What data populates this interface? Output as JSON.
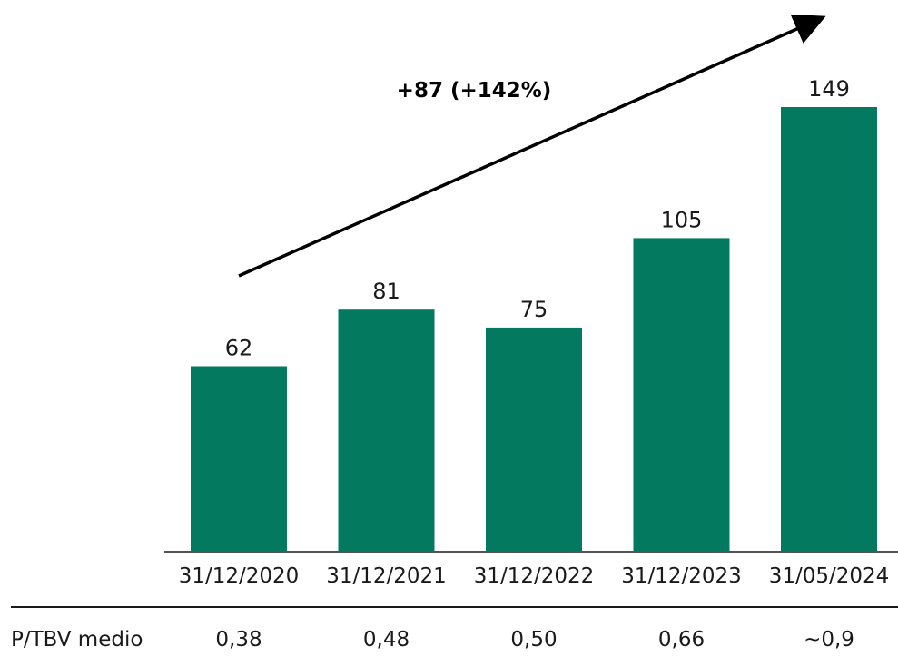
{
  "chart_data": {
    "type": "bar",
    "categories": [
      "31/12/2020",
      "31/12/2021",
      "31/12/2022",
      "31/12/2023",
      "31/05/2024"
    ],
    "values": [
      62,
      81,
      75,
      105,
      149
    ],
    "value_labels": [
      "62",
      "81",
      "75",
      "105",
      "149"
    ],
    "title": "",
    "xlabel": "",
    "ylabel": "",
    "bar_color": "#037a5f",
    "annotation": "+87 (+142%)",
    "grid": false
  },
  "ptbv_row": {
    "label": "P/TBV medio",
    "values": [
      "0,38",
      "0,48",
      "0,50",
      "0,66",
      "~0,9"
    ]
  },
  "colors": {
    "bar": "#037a5f",
    "axis": "#1a1a1a",
    "arrow": "#000000"
  }
}
